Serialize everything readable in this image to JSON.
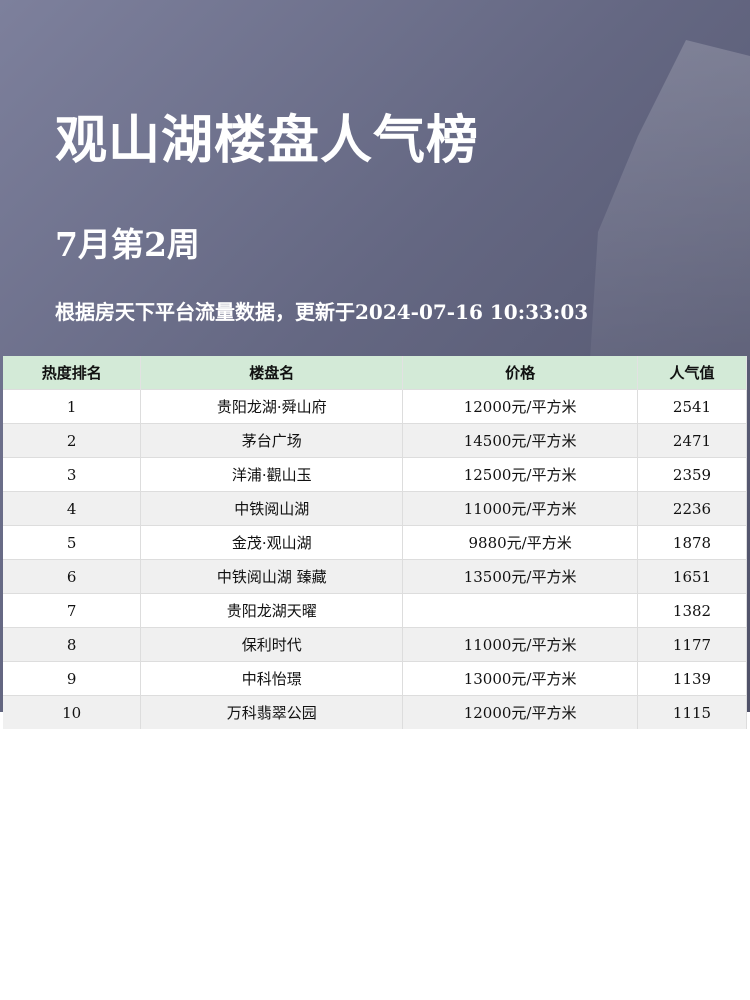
{
  "header": {
    "title": "观山湖楼盘人气榜",
    "week": "7月第2周",
    "info": "根据房天下平台流量数据，更新于2024-07-16 10:33:03"
  },
  "table": {
    "columns": [
      "热度排名",
      "楼盘名",
      "价格",
      "人气值"
    ],
    "rows": [
      [
        "1",
        "贵阳龙湖·舜山府",
        "12000元/平方米",
        "2541"
      ],
      [
        "2",
        "茅台广场",
        "14500元/平方米",
        "2471"
      ],
      [
        "3",
        "洋浦·觀山玉",
        "12500元/平方米",
        "2359"
      ],
      [
        "4",
        "中铁阅山湖",
        "11000元/平方米",
        "2236"
      ],
      [
        "5",
        "金茂·观山湖",
        "9880元/平方米",
        "1878"
      ],
      [
        "6",
        "中铁阅山湖 臻藏",
        "13500元/平方米",
        "1651"
      ],
      [
        "7",
        "贵阳龙湖天曜",
        "",
        "1382"
      ],
      [
        "8",
        "保利时代",
        "11000元/平方米",
        "1177"
      ],
      [
        "9",
        "中科怡璟",
        "13000元/平方米",
        "1139"
      ],
      [
        "10",
        "万科翡翠公园",
        "12000元/平方米",
        "1115"
      ]
    ]
  },
  "colors": {
    "header_bg": "#d3ead7",
    "hero": "#646782"
  }
}
